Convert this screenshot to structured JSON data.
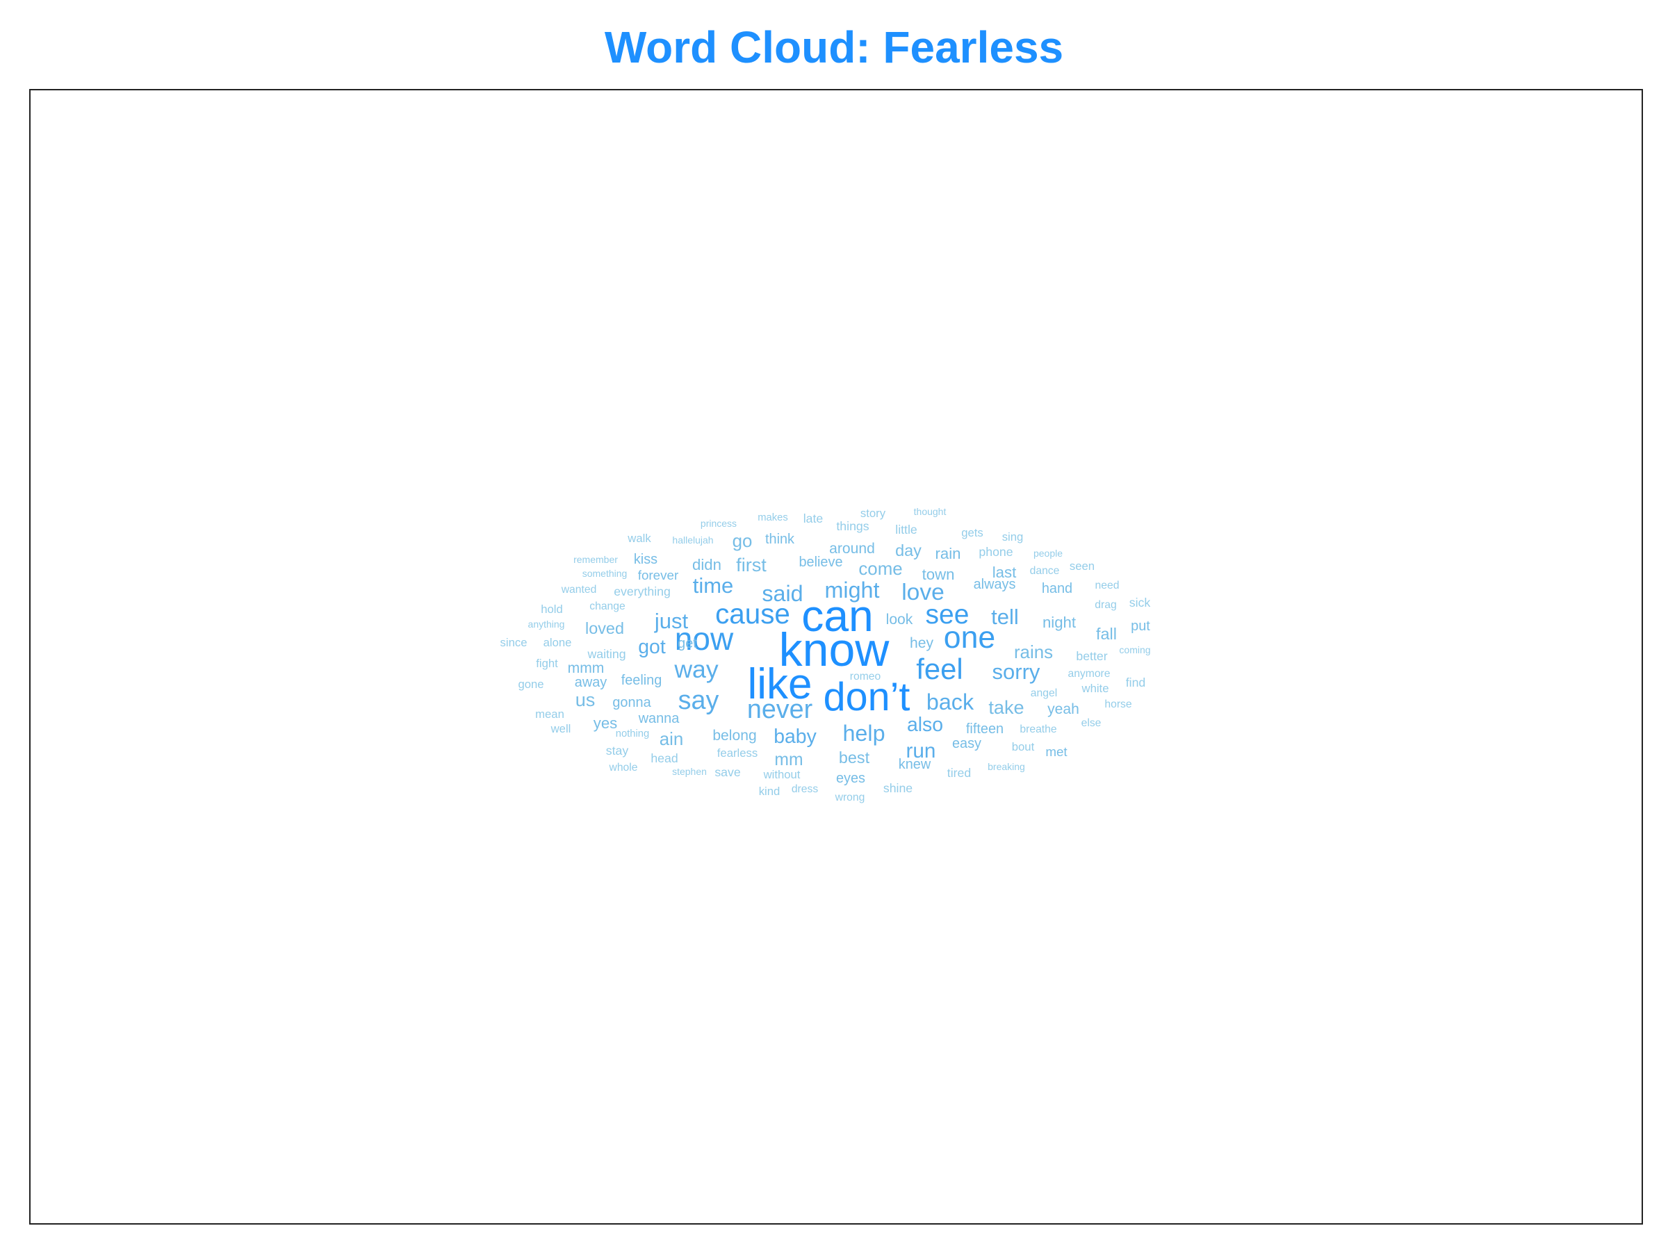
{
  "title": "Word Cloud: Fearless",
  "colors": {
    "title": "#1e90ff",
    "palette": [
      "#1e90ff",
      "#3b9ff0",
      "#5aaeea",
      "#76bde6",
      "#94cde9"
    ]
  },
  "chart_data": {
    "type": "wordcloud",
    "title": "Word Cloud: Fearless",
    "words": [
      {
        "text": "know",
        "weight": 100
      },
      {
        "text": "can",
        "weight": 95
      },
      {
        "text": "like",
        "weight": 92
      },
      {
        "text": "don’t",
        "weight": 86
      },
      {
        "text": "now",
        "weight": 70
      },
      {
        "text": "one",
        "weight": 68
      },
      {
        "text": "feel",
        "weight": 64
      },
      {
        "text": "cause",
        "weight": 62
      },
      {
        "text": "see",
        "weight": 60
      },
      {
        "text": "never",
        "weight": 58
      },
      {
        "text": "say",
        "weight": 58
      },
      {
        "text": "way",
        "weight": 55
      },
      {
        "text": "love",
        "weight": 52
      },
      {
        "text": "said",
        "weight": 50
      },
      {
        "text": "might",
        "weight": 50
      },
      {
        "text": "help",
        "weight": 50
      },
      {
        "text": "back",
        "weight": 50
      },
      {
        "text": "just",
        "weight": 48
      },
      {
        "text": "time",
        "weight": 48
      },
      {
        "text": "tell",
        "weight": 48
      },
      {
        "text": "sorry",
        "weight": 48
      },
      {
        "text": "run",
        "weight": 46
      },
      {
        "text": "got",
        "weight": 44
      },
      {
        "text": "baby",
        "weight": 44
      },
      {
        "text": "also",
        "weight": 44
      },
      {
        "text": "us",
        "weight": 42
      },
      {
        "text": "first",
        "weight": 42
      },
      {
        "text": "take",
        "weight": 42
      },
      {
        "text": "come",
        "weight": 40
      },
      {
        "text": "rains",
        "weight": 40
      },
      {
        "text": "go",
        "weight": 40
      },
      {
        "text": "ain",
        "weight": 40
      },
      {
        "text": "mm",
        "weight": 38
      },
      {
        "text": "day",
        "weight": 36
      },
      {
        "text": "loved",
        "weight": 36
      },
      {
        "text": "fall",
        "weight": 36
      },
      {
        "text": "best",
        "weight": 36
      },
      {
        "text": "night",
        "weight": 34
      },
      {
        "text": "last",
        "weight": 34
      },
      {
        "text": "rain",
        "weight": 34
      },
      {
        "text": "didn",
        "weight": 34
      },
      {
        "text": "town",
        "weight": 34
      },
      {
        "text": "yes",
        "weight": 34
      },
      {
        "text": "yeah",
        "weight": 32
      },
      {
        "text": "hey",
        "weight": 32
      },
      {
        "text": "look",
        "weight": 32
      },
      {
        "text": "around",
        "weight": 32
      },
      {
        "text": "belong",
        "weight": 32
      },
      {
        "text": "mmm",
        "weight": 32
      },
      {
        "text": "get",
        "weight": 30
      },
      {
        "text": "easy",
        "weight": 30
      },
      {
        "text": "wanna",
        "weight": 30
      },
      {
        "text": "gonna",
        "weight": 30
      },
      {
        "text": "feeling",
        "weight": 30
      },
      {
        "text": "away",
        "weight": 30
      },
      {
        "text": "always",
        "weight": 30
      },
      {
        "text": "hand",
        "weight": 30
      },
      {
        "text": "put",
        "weight": 30
      },
      {
        "text": "believe",
        "weight": 30
      },
      {
        "text": "think",
        "weight": 30
      },
      {
        "text": "kiss",
        "weight": 30
      },
      {
        "text": "eyes",
        "weight": 30
      },
      {
        "text": "knew",
        "weight": 30
      },
      {
        "text": "fifteen",
        "weight": 30
      },
      {
        "text": "forever",
        "weight": 28
      },
      {
        "text": "met",
        "weight": 28
      },
      {
        "text": "phone",
        "weight": 26
      },
      {
        "text": "little",
        "weight": 26
      },
      {
        "text": "sick",
        "weight": 26
      },
      {
        "text": "shine",
        "weight": 26
      },
      {
        "text": "tired",
        "weight": 26
      },
      {
        "text": "stay",
        "weight": 26
      },
      {
        "text": "head",
        "weight": 26
      },
      {
        "text": "save",
        "weight": 26
      },
      {
        "text": "waiting",
        "weight": 26
      },
      {
        "text": "find",
        "weight": 26
      },
      {
        "text": "late",
        "weight": 26
      },
      {
        "text": "everything",
        "weight": 26
      },
      {
        "text": "things",
        "weight": 26
      },
      {
        "text": "better",
        "weight": 26
      },
      {
        "text": "bout",
        "weight": 24
      },
      {
        "text": "fearless",
        "weight": 24
      },
      {
        "text": "without",
        "weight": 24
      },
      {
        "text": "sing",
        "weight": 24
      },
      {
        "text": "walk",
        "weight": 24
      },
      {
        "text": "story",
        "weight": 24
      },
      {
        "text": "gets",
        "weight": 24
      },
      {
        "text": "kind",
        "weight": 24
      },
      {
        "text": "white",
        "weight": 24
      },
      {
        "text": "seen",
        "weight": 24
      },
      {
        "text": "hold",
        "weight": 24
      },
      {
        "text": "alone",
        "weight": 24
      },
      {
        "text": "since",
        "weight": 24
      },
      {
        "text": "fight",
        "weight": 24
      },
      {
        "text": "gone",
        "weight": 24
      },
      {
        "text": "mean",
        "weight": 24
      },
      {
        "text": "well",
        "weight": 24
      },
      {
        "text": "whole",
        "weight": 22
      },
      {
        "text": "dance",
        "weight": 22
      },
      {
        "text": "need",
        "weight": 22
      },
      {
        "text": "drag",
        "weight": 22
      },
      {
        "text": "horse",
        "weight": 22
      },
      {
        "text": "else",
        "weight": 22
      },
      {
        "text": "breathe",
        "weight": 22
      },
      {
        "text": "angel",
        "weight": 22
      },
      {
        "text": "anymore",
        "weight": 22
      },
      {
        "text": "romeo",
        "weight": 22
      },
      {
        "text": "dress",
        "weight": 22
      },
      {
        "text": "wrong",
        "weight": 22
      },
      {
        "text": "change",
        "weight": 22
      },
      {
        "text": "wanted",
        "weight": 22
      },
      {
        "text": "nothing",
        "weight": 20
      },
      {
        "text": "makes",
        "weight": 20
      },
      {
        "text": "princess",
        "weight": 18
      },
      {
        "text": "hallelujah",
        "weight": 18
      },
      {
        "text": "remember",
        "weight": 18
      },
      {
        "text": "something",
        "weight": 18
      },
      {
        "text": "anything",
        "weight": 18
      },
      {
        "text": "thought",
        "weight": 18
      },
      {
        "text": "people",
        "weight": 18
      },
      {
        "text": "coming",
        "weight": 18
      },
      {
        "text": "stephen",
        "weight": 18
      },
      {
        "text": "breaking",
        "weight": 18
      }
    ]
  }
}
